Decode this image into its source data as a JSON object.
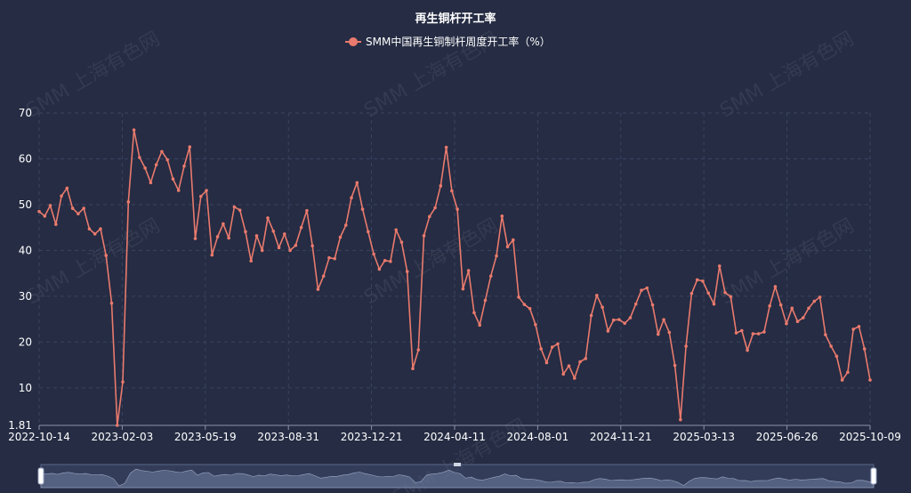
{
  "title": "再生铜杆开工率",
  "watermark": "SMM 上海有色网",
  "legend": {
    "label": "SMM中国再生铜制杆周度开工率（%）"
  },
  "colors": {
    "background": "#252c43",
    "line": "#e97a6d",
    "grid": "#3a4462",
    "text": "#ffffff"
  },
  "chart_data": {
    "type": "line",
    "title": "再生铜杆开工率",
    "series": [
      {
        "name": "SMM中国再生铜制杆周度开工率（%）",
        "values": [
          48.5,
          47.5,
          49.8,
          45.7,
          51.9,
          53.6,
          49.2,
          48.0,
          49.2,
          44.7,
          43.6,
          44.7,
          38.9,
          28.5,
          1.81,
          11.3,
          50.6,
          66.3,
          60.3,
          58.0,
          54.8,
          58.7,
          61.6,
          59.8,
          55.6,
          53.1,
          58.4,
          62.6,
          42.6,
          51.8,
          53.1,
          39.0,
          43.0,
          45.8,
          42.7,
          49.5,
          48.8,
          44.1,
          37.7,
          43.2,
          40.0,
          47.1,
          44.2,
          40.6,
          43.6,
          40.0,
          41.1,
          45.0,
          48.7,
          41.0,
          31.5,
          34.4,
          38.4,
          38.2,
          42.9,
          45.5,
          51.5,
          54.8,
          49.0,
          44.1,
          39.2,
          35.9,
          37.8,
          37.6,
          44.5,
          41.8,
          35.4,
          14.2,
          18.3,
          43.2,
          47.4,
          49.3,
          54.1,
          62.5,
          53.0,
          49.0,
          31.6,
          35.6,
          26.4,
          23.7,
          29.1,
          34.4,
          38.8,
          47.5,
          40.8,
          42.3,
          29.8,
          28.2,
          27.3,
          23.8,
          18.5,
          15.5,
          18.9,
          19.6,
          13.0,
          14.8,
          12.1,
          15.7,
          16.4,
          25.8,
          30.2,
          27.6,
          22.4,
          24.8,
          24.9,
          24.1,
          25.3,
          28.3,
          31.3,
          31.8,
          28.1,
          21.7,
          24.9,
          22.1,
          14.9,
          3.06,
          19.1,
          30.6,
          33.6,
          33.3,
          30.7,
          28.3,
          36.6,
          30.8,
          29.9,
          22.0,
          22.5,
          18.2,
          21.8,
          21.8,
          22.2,
          27.9,
          32.1,
          28.1,
          24.0,
          27.4,
          24.5,
          25.3,
          27.4,
          28.9,
          29.8,
          21.6,
          19.1,
          16.9,
          11.7,
          13.4,
          22.8,
          23.4,
          18.5,
          11.7
        ]
      }
    ],
    "x_tick_labels": [
      "2022-10-14",
      "2023-02-03",
      "2023-05-19",
      "2023-08-31",
      "2023-12-21",
      "2024-04-11",
      "2024-08-01",
      "2024-11-21",
      "2025-03-13",
      "2025-06-26",
      "2025-10-09"
    ],
    "y_ticks": [
      10,
      20,
      30,
      40,
      50,
      60,
      70
    ],
    "y_min_label": "1.81",
    "ylim": [
      1.81,
      70
    ],
    "grid": true,
    "legend_position": "top-center",
    "data_zoom": true
  }
}
